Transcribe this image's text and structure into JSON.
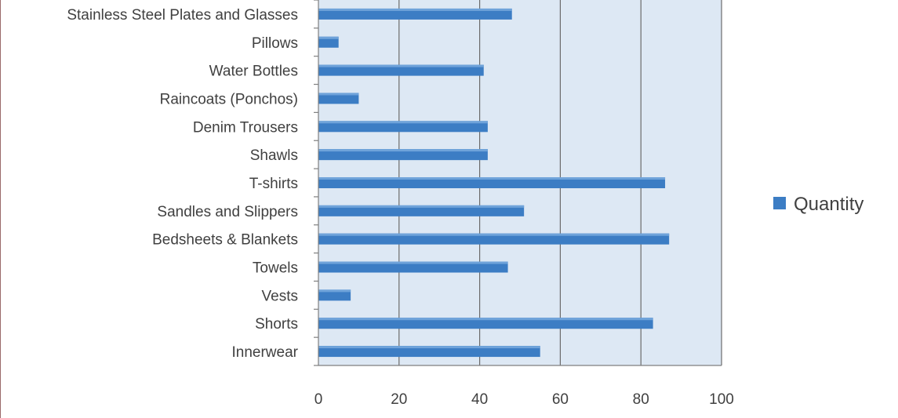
{
  "chart_data": {
    "type": "bar",
    "orientation": "horizontal",
    "categories": [
      "Stainless Steel Plates and Glasses",
      "Pillows",
      "Water Bottles",
      "Raincoats (Ponchos)",
      "Denim Trousers",
      "Shawls",
      "T-shirts",
      "Sandles and Slippers",
      "Bedsheets & Blankets",
      "Towels",
      "Vests",
      "Shorts",
      "Innerwear"
    ],
    "series": [
      {
        "name": "Quantity",
        "color": "#3c7dc4",
        "values": [
          48,
          5,
          41,
          10,
          42,
          42,
          86,
          51,
          87,
          47,
          8,
          83,
          55
        ]
      }
    ],
    "xlim": [
      0,
      100
    ],
    "x_ticks": [
      "0",
      "20",
      "40",
      "60",
      "80",
      "100"
    ],
    "grid": "vertical",
    "legend_position": "right",
    "plot_background": "#dde8f4"
  }
}
